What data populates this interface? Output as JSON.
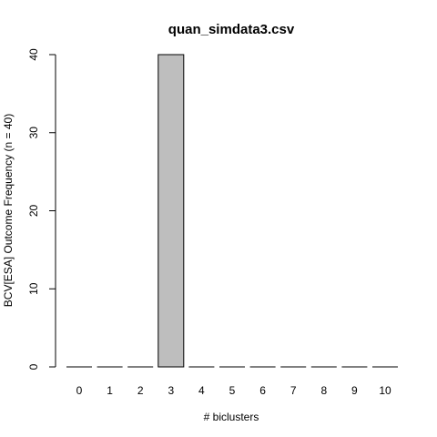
{
  "chart_data": {
    "type": "bar",
    "title": "quan_simdata3.csv",
    "xlabel": "# biclusters",
    "ylabel": "BCV[ESA] Outcome Frequency (n = 40)",
    "categories": [
      "0",
      "1",
      "2",
      "3",
      "4",
      "5",
      "6",
      "7",
      "8",
      "9",
      "10"
    ],
    "values": [
      0,
      0,
      0,
      40,
      0,
      0,
      0,
      0,
      0,
      0,
      0
    ],
    "ylim": [
      0,
      40
    ],
    "yticks": [
      "0",
      "10",
      "20",
      "30",
      "40"
    ],
    "bar_color": "#bebebe",
    "bar_edge_color": "#000000",
    "grid": false,
    "legend": "none"
  }
}
